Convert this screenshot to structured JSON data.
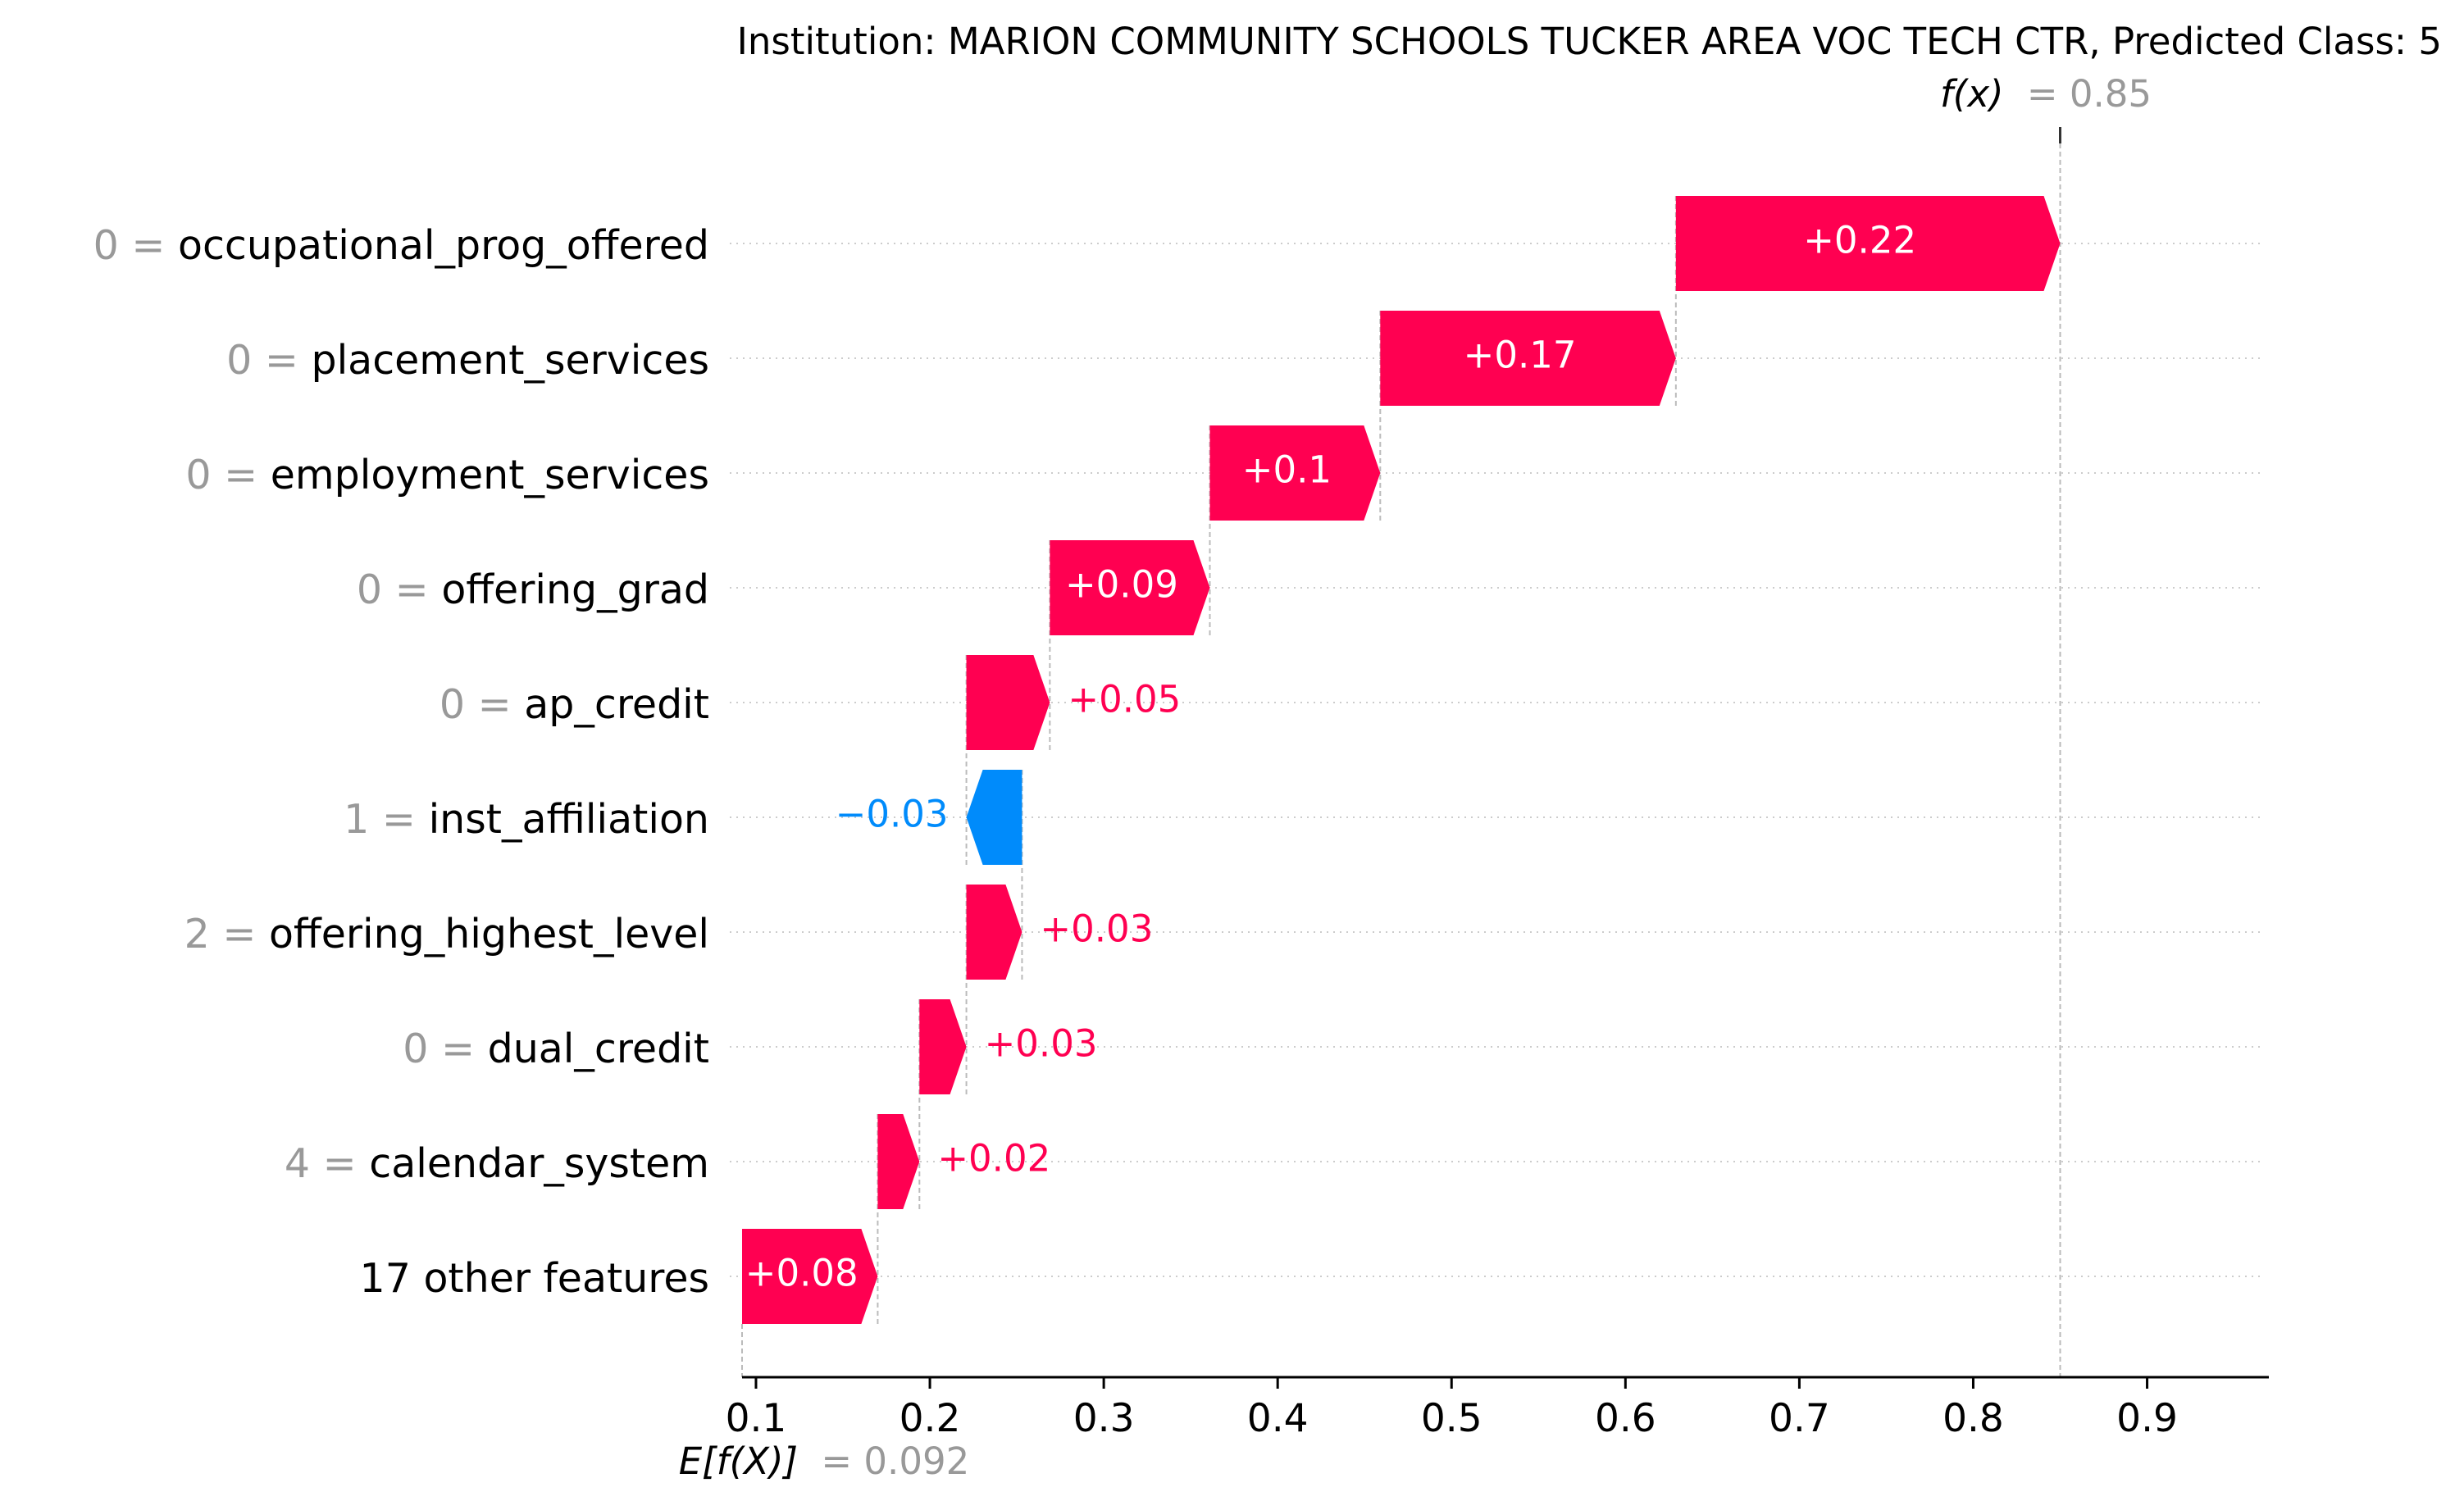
{
  "chart_data": {
    "type": "waterfall",
    "title": "Institution: MARION COMMUNITY SCHOOLS TUCKER AREA VOC TECH CTR, Predicted Class: 5",
    "fx_label": "f(x)",
    "fx_value_text": "= 0.85",
    "fx_value": 0.85,
    "base_label": "E[f(X)]",
    "base_value_text": "= 0.092",
    "base_value": 0.092,
    "xlim": [
      0.092,
      0.97
    ],
    "x_ticks": [
      "0.1",
      "0.2",
      "0.3",
      "0.4",
      "0.5",
      "0.6",
      "0.7",
      "0.8",
      "0.9"
    ],
    "x_tick_values": [
      0.1,
      0.2,
      0.3,
      0.4,
      0.5,
      0.6,
      0.7,
      0.8,
      0.9
    ],
    "colors": {
      "positive": "#ff0051",
      "negative": "#008bfb",
      "muted": "#999999",
      "text": "#000000"
    },
    "features": [
      {
        "value": "0 =",
        "name": "occupational_prog_offered",
        "start": 0.629,
        "end": 0.85,
        "label": "+0.22"
      },
      {
        "value": "0 =",
        "name": "placement_services",
        "start": 0.459,
        "end": 0.629,
        "label": "+0.17"
      },
      {
        "value": "0 =",
        "name": "employment_services",
        "start": 0.361,
        "end": 0.459,
        "label": "+0.1"
      },
      {
        "value": "0 =",
        "name": "offering_grad",
        "start": 0.269,
        "end": 0.361,
        "label": "+0.09"
      },
      {
        "value": "0 =",
        "name": "ap_credit",
        "start": 0.221,
        "end": 0.269,
        "label": "+0.05"
      },
      {
        "value": "1 =",
        "name": "inst_affiliation",
        "start": 0.253,
        "end": 0.221,
        "label": "−0.03"
      },
      {
        "value": "2 =",
        "name": "offering_highest_level",
        "start": 0.221,
        "end": 0.253,
        "label": "+0.03"
      },
      {
        "value": "0 =",
        "name": "dual_credit",
        "start": 0.194,
        "end": 0.221,
        "label": "+0.03"
      },
      {
        "value": "4 =",
        "name": "calendar_system",
        "start": 0.17,
        "end": 0.194,
        "label": "+0.02"
      },
      {
        "value": "",
        "name": "17 other features",
        "start": 0.092,
        "end": 0.17,
        "label": "+0.08"
      }
    ]
  }
}
